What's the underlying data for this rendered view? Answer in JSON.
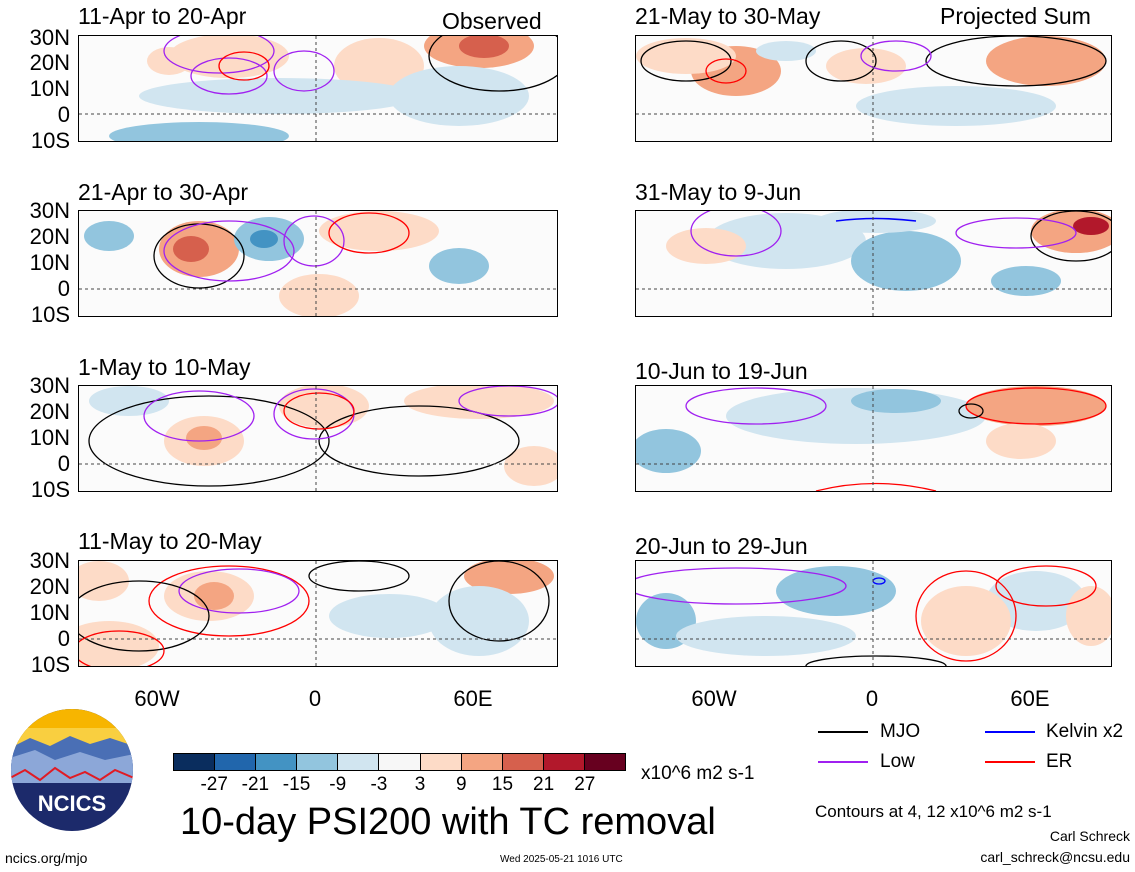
{
  "header": {
    "observed_label": "Observed",
    "projected_label": "Projected Sum"
  },
  "panels": [
    {
      "title": "11-Apr to 20-Apr"
    },
    {
      "title": "21-Apr to 30-Apr"
    },
    {
      "title": "1-May to 10-May"
    },
    {
      "title": "11-May to 20-May"
    },
    {
      "title": "21-May to 30-May"
    },
    {
      "title": "31-May to 9-Jun"
    },
    {
      "title": "10-Jun to 19-Jun"
    },
    {
      "title": "20-Jun to 29-Jun"
    }
  ],
  "axes": {
    "lat_labels": [
      "30N",
      "20N",
      "10N",
      "0",
      "10S"
    ],
    "lon_labels": [
      "60W",
      "0",
      "60E"
    ]
  },
  "colorbar": {
    "colors": [
      "#0a2d5e",
      "#2166ac",
      "#4393c3",
      "#92c5de",
      "#d1e5f0",
      "#f7f7f7",
      "#fddbc7",
      "#f4a582",
      "#d6604d",
      "#b2182b",
      "#67001f"
    ],
    "labels": [
      "-27",
      "-21",
      "-15",
      "-9",
      "-3",
      "3",
      "9",
      "15",
      "21",
      "27"
    ],
    "units": "x10^6 m2 s-1"
  },
  "legend": {
    "mjo": "MJO",
    "low": "Low",
    "kelvin": "Kelvin x2",
    "er": "ER",
    "colors": {
      "mjo": "#000000",
      "low": "#a020f0",
      "kelvin": "#0000ff",
      "er": "#ff0000"
    }
  },
  "chart_title": "10-day PSI200 with TC removal",
  "contours_note": "Contours at 4, 12 x10^6 m2 s-1",
  "logo": {
    "text": "NCICS"
  },
  "footer": {
    "url": "ncics.org/mjo",
    "timestamp": "Wed 2025-05-21 1016 UTC",
    "author": "Carl Schreck",
    "email": "carl_schreck@ncsu.edu"
  }
}
